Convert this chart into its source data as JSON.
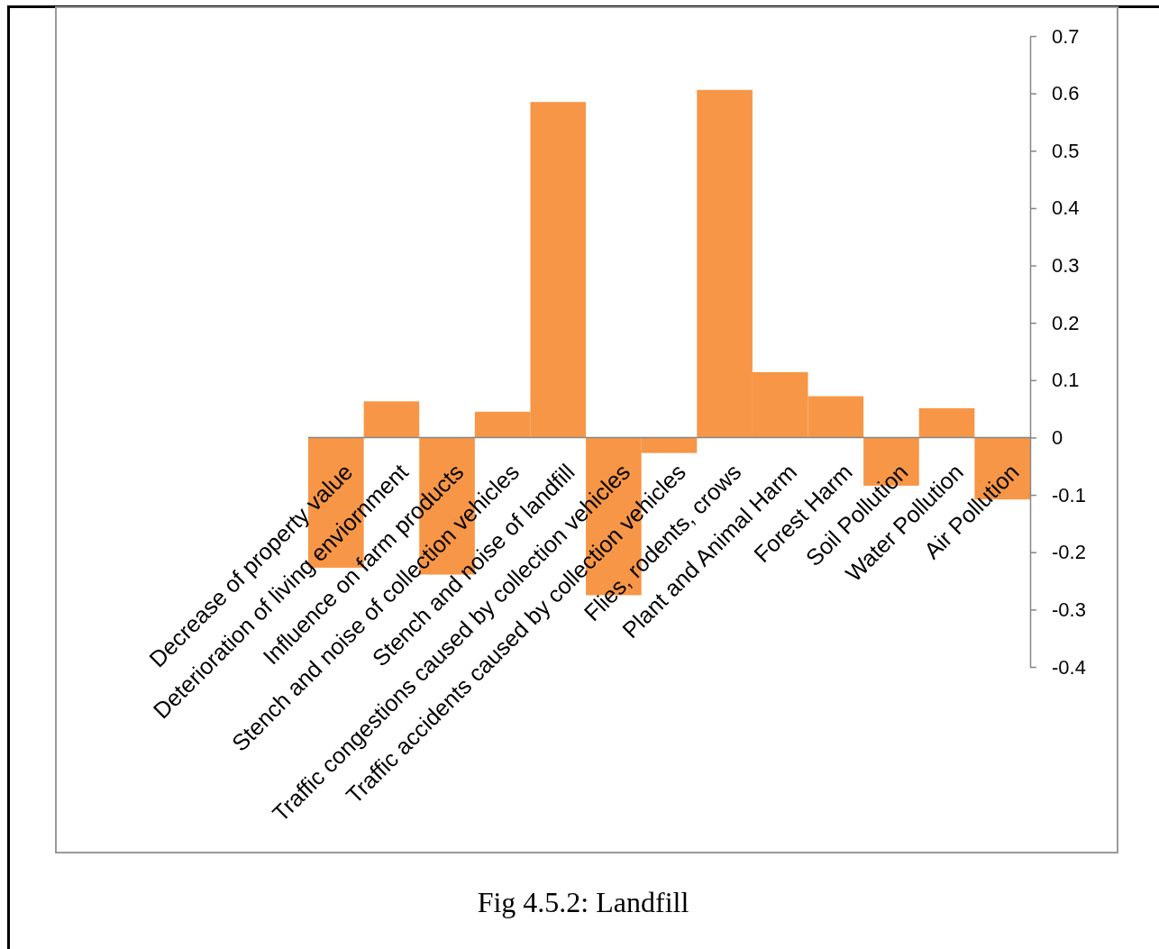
{
  "chart_data": {
    "type": "bar",
    "title": "Fig 4.5.2: Landfill",
    "categories": [
      "Decrease of property value",
      "Deterioration of living enviornment",
      "Influence on farm products",
      "Stench and noise of collection vehicles",
      "Stench and noise of landfill",
      "Traffic congestions caused by collection vehicles",
      "Traffic accidents caused by collection vehicles",
      "Flies, rodents, crows",
      "Plant and Animal Harm",
      "Forest Harm",
      "Soil Pollution",
      "Water Pollution",
      "Air Pollution"
    ],
    "values": [
      -0.227,
      0.063,
      -0.239,
      0.045,
      0.585,
      -0.275,
      -0.027,
      0.606,
      0.114,
      0.072,
      -0.084,
      0.051,
      -0.108
    ],
    "color": "#f79646",
    "ylim": [
      -0.4,
      0.7
    ],
    "yticks": [
      -0.4,
      -0.3,
      -0.2,
      -0.1,
      0,
      0.1,
      0.2,
      0.3,
      0.4,
      0.5,
      0.6,
      0.7
    ]
  }
}
